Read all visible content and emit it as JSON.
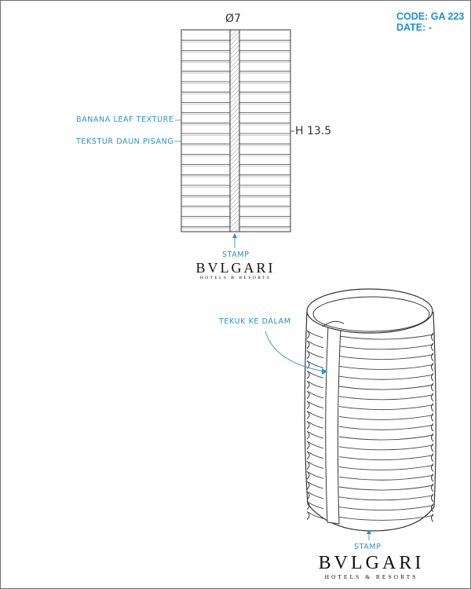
{
  "header": {
    "code": "CODE: GA 223",
    "date": "DATE: -"
  },
  "front_view": {
    "diameter": "Ø7",
    "height": "H 13.5",
    "texture_label_en": "BANANA LEAF TEXTURE",
    "texture_label_id": "TEKSTUR DAUN PISANG",
    "stamp_label": "STAMP",
    "brand_name": "BVLGARI",
    "brand_sub": "HOTELS & RESORTS"
  },
  "iso_view": {
    "fold_label": "TEKUK KE DALAM",
    "stamp_label": "STAMP",
    "brand_name": "BVLGARI",
    "brand_sub": "HOTELS & RESORTS"
  },
  "colors": {
    "accent": "#1f8fd6",
    "annotation": "#2a93c9",
    "line": "#333333"
  }
}
